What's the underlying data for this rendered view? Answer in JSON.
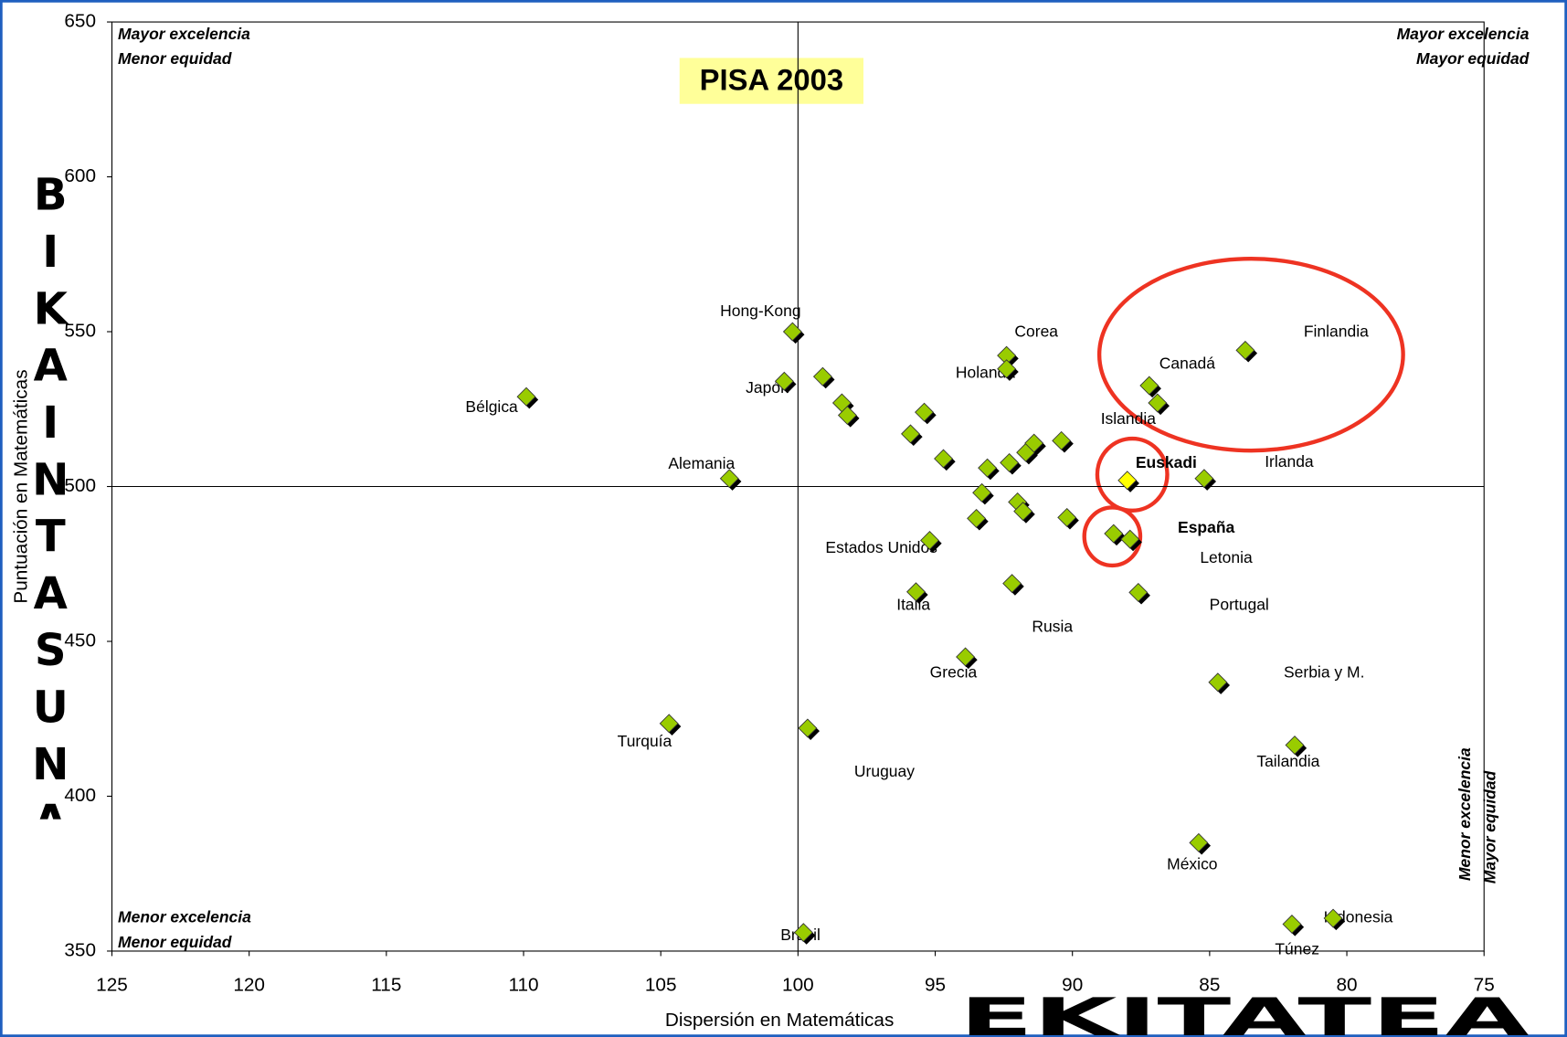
{
  "chart_data": {
    "type": "scatter",
    "title": "PISA 2003",
    "x_label": "Dispersión en Matemáticas",
    "y_label": "Puntuación en Matemáticas",
    "y_big_label": "BIKAINTASUNA",
    "x_big_label": "EKITATEA",
    "quadrant_labels": {
      "top_left": [
        "Mayor excelencia",
        "Menor equidad"
      ],
      "top_right": [
        "Mayor excelencia",
        "Mayor equidad"
      ],
      "bottom_left": [
        "Menor excelencia",
        "Menor equidad"
      ],
      "bottom_right": [
        "Menor excelencia",
        "Mayor equidad"
      ]
    },
    "xlim": [
      125,
      75
    ],
    "ylim": [
      350,
      650
    ],
    "xticks": [
      125,
      120,
      115,
      110,
      105,
      100,
      95,
      90,
      85,
      80,
      75
    ],
    "yticks": [
      350,
      400,
      450,
      500,
      550,
      600,
      650
    ],
    "reference_lines": {
      "x": 100,
      "y": 500
    },
    "series": [
      {
        "color": "#99cc00",
        "x": [
          109.9,
          100.2,
          100.5,
          102.5,
          104.7,
          99.65,
          99.8,
          99.1,
          98.4,
          98.2,
          95.9,
          95.4,
          94.7,
          95.2,
          95.7,
          93.9,
          93.1,
          93.3,
          93.5,
          92.4,
          92.4,
          92.3,
          92.0,
          91.8,
          92.2,
          91.7,
          91.4,
          90.4,
          90.2,
          88.5,
          87.9,
          87.2,
          86.9,
          83.7,
          85.2,
          87.6,
          84.7,
          81.9,
          85.4,
          82.0,
          80.5
        ],
        "values": [
          529,
          550,
          534,
          502.6,
          423.5,
          422,
          356,
          535.5,
          527,
          523,
          517,
          524,
          509,
          482.6,
          466,
          445,
          506,
          498,
          489.7,
          542.3,
          538,
          507.7,
          495,
          492,
          468.7,
          511,
          514,
          514.8,
          490,
          484.8,
          483,
          532.6,
          527,
          544,
          502.6,
          465.8,
          436.8,
          416.5,
          385,
          358.7,
          360.6
        ]
      },
      {
        "color": "#ffff00",
        "x": [
          88.0
        ],
        "values": [
          502
        ]
      }
    ],
    "annotations": [
      "Hong-Kong",
      "Corea",
      "Finlandia",
      "Japón",
      "Holanda",
      "Canadá",
      "Bélgica",
      "Islandia",
      "Alemania",
      "Euskadi",
      "Irlanda",
      "España",
      "Estados Unidos",
      "Letonia",
      "Italia",
      "Portugal",
      "Rusia",
      "Grecia",
      "Serbia y M.",
      "Turquía",
      "Tailandia",
      "Uruguay",
      "México",
      "Brasil",
      "Indonesia",
      "Túnez"
    ]
  }
}
